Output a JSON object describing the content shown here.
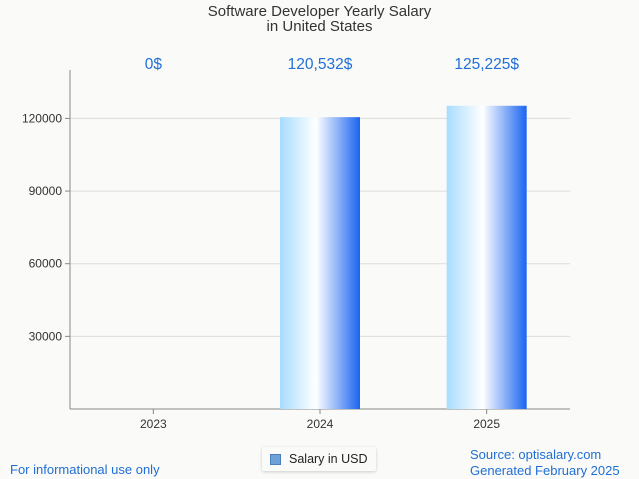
{
  "chart_data": {
    "type": "bar",
    "title": "Software Developer Yearly Salary",
    "subtitle": "in United States",
    "categories": [
      "2023",
      "2024",
      "2025"
    ],
    "series": [
      {
        "name": "Salary in USD",
        "values": [
          0,
          120532,
          125225
        ]
      }
    ],
    "data_labels": [
      "0$",
      "120,532$",
      "125,225$"
    ],
    "yticks": [
      "30000",
      "60000",
      "90000",
      "120000"
    ],
    "ylim": [
      0,
      140000
    ],
    "xlabel": "",
    "ylabel": "",
    "grid": true,
    "legend_position": "bottom-center"
  },
  "colors": {
    "bar_light": "#ffffff",
    "bar_mid": "#a8dcff",
    "bar_dark": "#1a64f0",
    "label": "#1f6fd6",
    "grid": "#dddddd",
    "axis": "#888888"
  },
  "footer": {
    "left": "For informational use only",
    "source": "Source: optisalary.com",
    "generated": "Generated February 2025"
  }
}
